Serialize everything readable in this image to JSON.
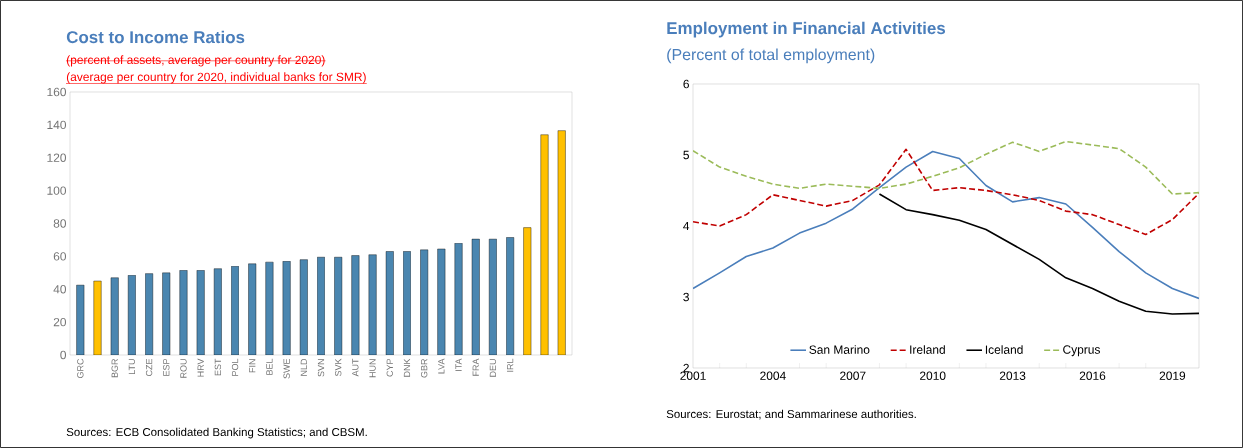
{
  "chart_data": [
    {
      "type": "bar",
      "title": "Cost to Income Ratios",
      "subtitle": "(percent of assets, average per country for 2020)",
      "annotations": [
        "(average per country for 2020, individual banks for SMR)",
        "Sources: ECB Consolidated Banking Statistics; and CBSM."
      ],
      "categories": [
        "GRC",
        null,
        "BGR",
        "LTU",
        "CZE",
        "ESP",
        "ROU",
        "HRV",
        "EST",
        "POL",
        "FIN",
        "BEL",
        "SWE",
        "NLD",
        "SVN",
        "SVK",
        "AUT",
        "HUN",
        "CYP",
        "DNK",
        "GBR",
        "LVA",
        "ITA",
        "FRA",
        "DEU",
        "IRL",
        null,
        null,
        null
      ],
      "values": [
        42.5,
        45,
        47,
        48.5,
        49.5,
        50,
        51.5,
        51.5,
        52.5,
        54,
        55.5,
        56.5,
        57,
        58,
        59.5,
        59.5,
        60.5,
        61,
        63,
        63,
        64,
        64.5,
        68,
        70.5,
        70.5,
        71.5,
        77.5,
        134,
        136.5
      ],
      "colors": [
        "#4a86b0",
        "#ffc000",
        "#4a86b0",
        "#4a86b0",
        "#4a86b0",
        "#4a86b0",
        "#4a86b0",
        "#4a86b0",
        "#4a86b0",
        "#4a86b0",
        "#4a86b0",
        "#4a86b0",
        "#4a86b0",
        "#4a86b0",
        "#4a86b0",
        "#4a86b0",
        "#4a86b0",
        "#4a86b0",
        "#4a86b0",
        "#4a86b0",
        "#4a86b0",
        "#4a86b0",
        "#4a86b0",
        "#4a86b0",
        "#4a86b0",
        "#4a86b0",
        "#ffc000",
        "#ffc000",
        "#ffc000"
      ],
      "ylim": [
        0,
        160
      ],
      "yticks": [
        0,
        20,
        40,
        60,
        80,
        100,
        120,
        140,
        160
      ],
      "grid": false
    },
    {
      "type": "line",
      "title": "Employment in Financial Activities",
      "subtitle": "(Percent of total employment)",
      "annotations": [
        "Sources: Eurostat; and Sammarinese authorities."
      ],
      "x": [
        2001,
        2002,
        2003,
        2004,
        2005,
        2006,
        2007,
        2008,
        2009,
        2010,
        2011,
        2012,
        2013,
        2014,
        2015,
        2016,
        2017,
        2018,
        2019,
        2020
      ],
      "series": [
        {
          "name": "San Marino",
          "color": "#4a7ebb",
          "line_style": "solid",
          "values": [
            3.12,
            3.34,
            3.57,
            3.69,
            3.9,
            4.04,
            4.24,
            4.54,
            4.83,
            5.05,
            4.95,
            4.57,
            4.34,
            4.4,
            4.31,
            3.98,
            3.64,
            3.34,
            3.12,
            2.98
          ]
        },
        {
          "name": "Ireland",
          "color": "#c00000",
          "line_style": "dashed",
          "values": [
            4.06,
            4.0,
            4.16,
            4.44,
            4.36,
            4.28,
            4.36,
            4.58,
            5.08,
            4.5,
            4.54,
            4.5,
            4.44,
            4.36,
            4.21,
            4.16,
            4.02,
            3.88,
            4.09,
            4.46
          ]
        },
        {
          "name": "Iceland",
          "color": "#000000",
          "line_style": "solid",
          "values": [
            null,
            null,
            null,
            null,
            null,
            null,
            null,
            4.45,
            4.23,
            4.16,
            4.08,
            3.95,
            3.74,
            3.53,
            3.27,
            3.12,
            2.94,
            2.8,
            2.76,
            2.77
          ]
        },
        {
          "name": "Cyprus",
          "color": "#9bbb59",
          "line_style": "dashed",
          "values": [
            5.06,
            4.83,
            4.7,
            4.59,
            4.53,
            4.59,
            4.56,
            4.53,
            4.59,
            4.7,
            4.82,
            5.01,
            5.18,
            5.05,
            5.19,
            5.14,
            5.09,
            4.83,
            4.45,
            4.47
          ]
        }
      ],
      "xlim": [
        2001,
        2020
      ],
      "xticks": [
        2001,
        2004,
        2007,
        2010,
        2013,
        2016,
        2019
      ],
      "ylim": [
        2,
        6
      ],
      "yticks": [
        2,
        3,
        4,
        5,
        6
      ],
      "legend": "bottom",
      "grid": false
    }
  ]
}
